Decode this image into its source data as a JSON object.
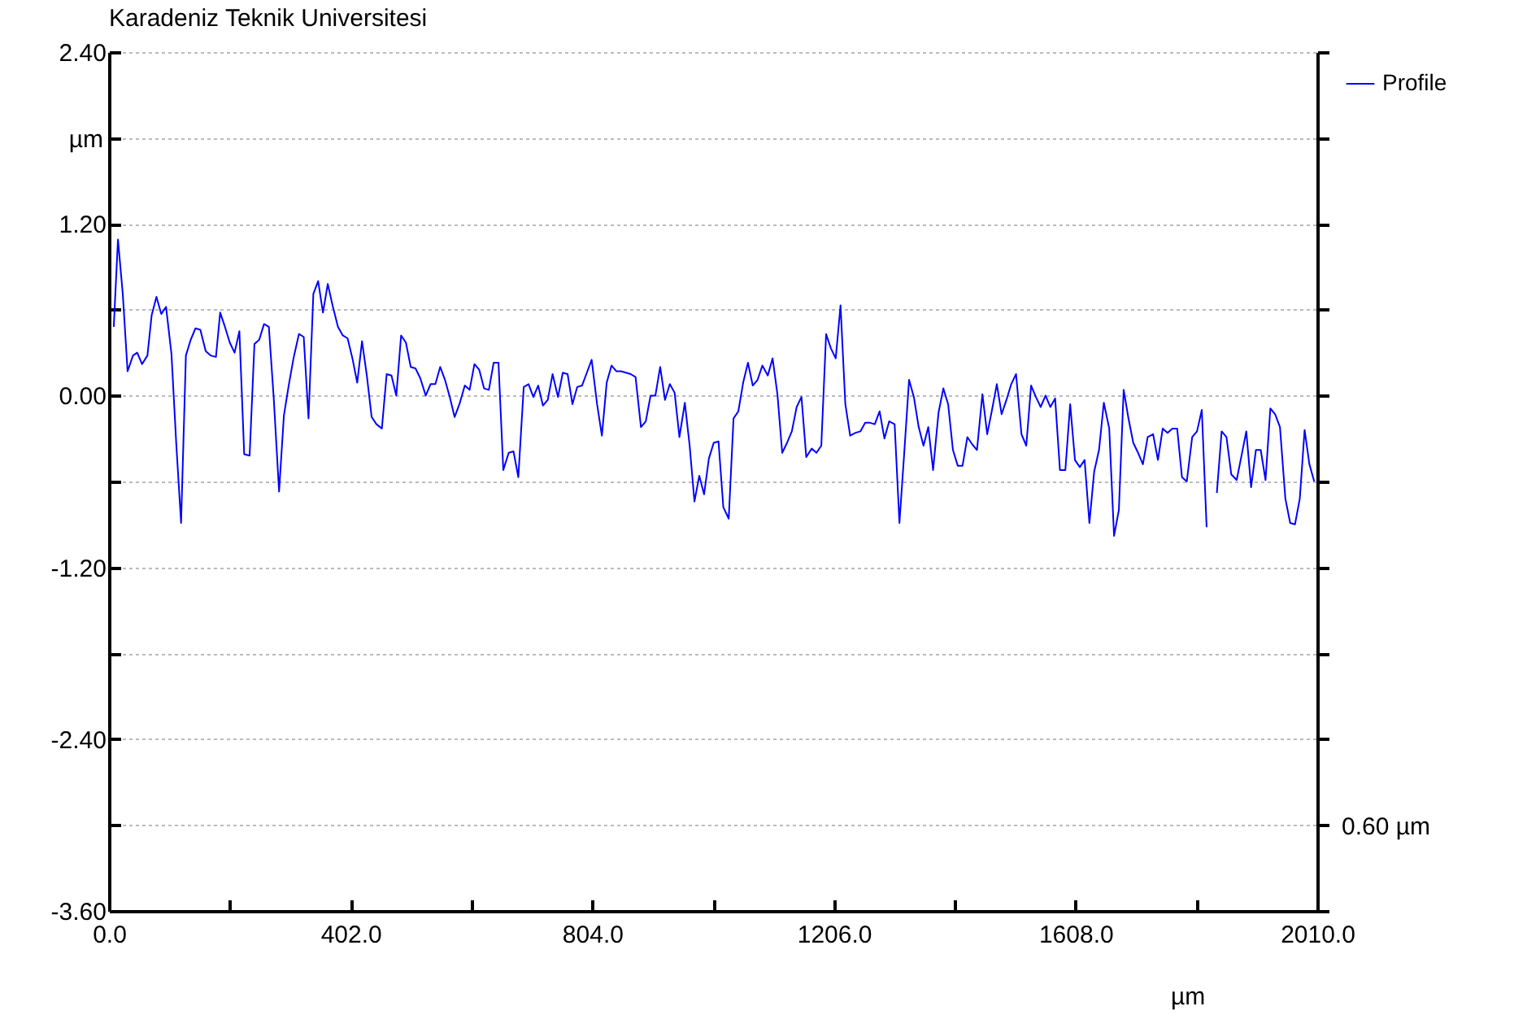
{
  "chart_data": {
    "type": "line",
    "title": "Karadeniz Teknik Universitesi",
    "xlabel": "µm",
    "ylabel": "µm",
    "annotations": [
      "0.60 µm"
    ],
    "xlim": [
      0,
      2010
    ],
    "ylim": [
      -3.6,
      2.4
    ],
    "xticks": [
      {
        "value": 0,
        "label": "0.0"
      },
      {
        "value": 201,
        "label": null
      },
      {
        "value": 402,
        "label": "402.0"
      },
      {
        "value": 603,
        "label": null
      },
      {
        "value": 804,
        "label": "804.0"
      },
      {
        "value": 1005,
        "label": null
      },
      {
        "value": 1206,
        "label": "1206.0"
      },
      {
        "value": 1407,
        "label": null
      },
      {
        "value": 1608,
        "label": "1608.0"
      },
      {
        "value": 1809,
        "label": null
      },
      {
        "value": 2010,
        "label": "2010.0"
      }
    ],
    "yticks": [
      {
        "value": -3.6,
        "label": "-3.60"
      },
      {
        "value": -3.0,
        "label": null
      },
      {
        "value": -2.4,
        "label": "-2.40"
      },
      {
        "value": -1.8,
        "label": null
      },
      {
        "value": -1.2,
        "label": "-1.20"
      },
      {
        "value": -0.6,
        "label": null
      },
      {
        "value": 0,
        "label": "0.00"
      },
      {
        "value": 0.6,
        "label": null
      },
      {
        "value": 1.2,
        "label": "1.20"
      },
      {
        "value": 1.8,
        "label": null
      },
      {
        "value": 2.4,
        "label": "2.40"
      }
    ],
    "grid": "y",
    "legend": "top right",
    "x": [
      8,
      15,
      23,
      31,
      40,
      47,
      55,
      64,
      71,
      79,
      87,
      95,
      104,
      112,
      120,
      128,
      136,
      144,
      152,
      161,
      169,
      178,
      185,
      193,
      201,
      209,
      217,
      225,
      234,
      242,
      250,
      258,
      266,
      274,
      283,
      291,
      299,
      307,
      316,
      324,
      332,
      340,
      348,
      356,
      364,
      372,
      381,
      389,
      397,
      405,
      413,
      421,
      429,
      437,
      445,
      454,
      462,
      470,
      478,
      486,
      494,
      502,
      510,
      518,
      527,
      535,
      543,
      551,
      559,
      567,
      575,
      583,
      592,
      600,
      608,
      616,
      624,
      632,
      640,
      648,
      656,
      665,
      673,
      681,
      690,
      698,
      706,
      714,
      722,
      730,
      738,
      747,
      755,
      763,
      771,
      779,
      787,
      795,
      803,
      812,
      820,
      828,
      836,
      844,
      852,
      860,
      868,
      876,
      885,
      893,
      901,
      909,
      917,
      925,
      933,
      941,
      949,
      958,
      966,
      974,
      982,
      990,
      998,
      1006,
      1014,
      1022,
      1031,
      1039,
      1047,
      1055,
      1063,
      1071,
      1079,
      1087,
      1096,
      1104,
      1112,
      1120,
      1128,
      1136,
      1144,
      1152,
      1160,
      1169,
      1177,
      1185,
      1193,
      1201,
      1209,
      1217,
      1225,
      1233,
      1242,
      1250,
      1258,
      1266,
      1274,
      1282,
      1290,
      1298,
      1307,
      1315,
      1323,
      1331,
      1339,
      1347,
      1355,
      1363,
      1371,
      1380,
      1388,
      1396,
      1404,
      1412,
      1420,
      1428,
      1436,
      1444,
      1453,
      1461,
      1469,
      1477,
      1485,
      1493,
      1501,
      1509,
      1518,
      1526,
      1534,
      1542,
      1550,
      1558,
      1566,
      1574,
      1582,
      1591,
      1599,
      1607,
      1615,
      1623,
      1631,
      1639,
      1647,
      1655,
      1664,
      1672,
      1680,
      1688,
      1696,
      1704,
      1712,
      1720,
      1728,
      1737,
      1745,
      1753,
      1761,
      1769,
      1777,
      1785,
      1793,
      1802,
      1810,
      1818,
      1826,
      1834,
      1843,
      1851,
      1859,
      1867,
      1876,
      1884,
      1892,
      1900,
      1908,
      1916,
      1924,
      1932,
      1940,
      1948,
      1957,
      1965,
      1973,
      1981,
      1989,
      1997,
      2005
    ],
    "series": [
      {
        "name": "Profile",
        "color": "#0000ff",
        "values": [
          0.48,
          1.09,
          0.71,
          0.17,
          0.28,
          0.3,
          0.22,
          0.28,
          0.56,
          0.69,
          0.57,
          0.62,
          0.29,
          -0.34,
          -0.89,
          0.28,
          0.39,
          0.47,
          0.46,
          0.31,
          0.28,
          0.27,
          0.58,
          0.48,
          0.37,
          0.3,
          0.45,
          -0.41,
          -0.42,
          0.36,
          0.39,
          0.5,
          0.48,
          -0.01,
          -0.67,
          -0.14,
          0.07,
          0.26,
          0.43,
          0.41,
          -0.16,
          0.71,
          0.8,
          0.58,
          0.78,
          0.63,
          0.48,
          0.42,
          0.4,
          0.26,
          0.09,
          0.38,
          0.14,
          -0.15,
          -0.2,
          -0.23,
          0.15,
          0.14,
          0.0,
          0.42,
          0.37,
          0.2,
          0.19,
          0.12,
          0.0,
          0.08,
          0.08,
          0.2,
          0.11,
          -0.01,
          -0.15,
          -0.06,
          0.07,
          0.04,
          0.22,
          0.18,
          0.05,
          0.04,
          0.23,
          0.23,
          -0.52,
          -0.4,
          -0.39,
          -0.57,
          0.06,
          0.08,
          -0.01,
          0.07,
          -0.07,
          -0.03,
          0.15,
          -0.01,
          0.16,
          0.15,
          -0.06,
          0.06,
          0.07,
          0.16,
          0.25,
          -0.06,
          -0.28,
          0.09,
          0.21,
          0.17,
          0.17,
          0.16,
          0.15,
          0.13,
          -0.22,
          -0.18,
          0.0,
          0.0,
          0.2,
          -0.03,
          0.08,
          0.02,
          -0.29,
          -0.05,
          -0.35,
          -0.74,
          -0.56,
          -0.69,
          -0.44,
          -0.33,
          -0.32,
          -0.78,
          -0.86,
          -0.16,
          -0.11,
          0.09,
          0.23,
          0.07,
          0.11,
          0.21,
          0.14,
          0.26,
          0.01,
          -0.4,
          -0.33,
          -0.25,
          -0.08,
          -0.01,
          -0.43,
          -0.37,
          -0.4,
          -0.35,
          0.43,
          0.33,
          0.26,
          0.63,
          -0.06,
          -0.28,
          -0.26,
          -0.25,
          -0.19,
          -0.19,
          -0.2,
          -0.11,
          -0.3,
          -0.18,
          -0.2,
          -0.89,
          -0.4,
          0.11,
          -0.01,
          -0.22,
          -0.35,
          -0.22,
          -0.52,
          -0.12,
          0.05,
          -0.06,
          -0.38,
          -0.49,
          -0.49,
          -0.29,
          -0.34,
          -0.38,
          0.01,
          -0.27,
          -0.1,
          0.08,
          -0.13,
          -0.03,
          0.08,
          0.15,
          -0.27,
          -0.35,
          0.07,
          -0.01,
          -0.08,
          0.0,
          -0.08,
          -0.02,
          -0.52,
          -0.52,
          -0.06,
          -0.45,
          -0.5,
          -0.45,
          -0.89,
          -0.53,
          -0.38,
          -0.05,
          -0.23,
          -0.98,
          -0.8,
          0.04,
          -0.16,
          -0.33,
          -0.4,
          -0.48,
          -0.29,
          -0.27,
          -0.45,
          -0.23,
          -0.26,
          -0.23,
          -0.23,
          -0.57,
          -0.6,
          -0.29,
          -0.25,
          -0.1,
          -0.92,
          null,
          -0.68,
          -0.25,
          -0.29,
          -0.55,
          -0.59,
          -0.42,
          -0.25,
          -0.64,
          -0.38,
          -0.38,
          -0.59,
          -0.09,
          -0.13,
          -0.22,
          -0.72,
          -0.89,
          -0.9,
          -0.72,
          -0.24,
          -0.48,
          -0.6
        ]
      }
    ]
  }
}
